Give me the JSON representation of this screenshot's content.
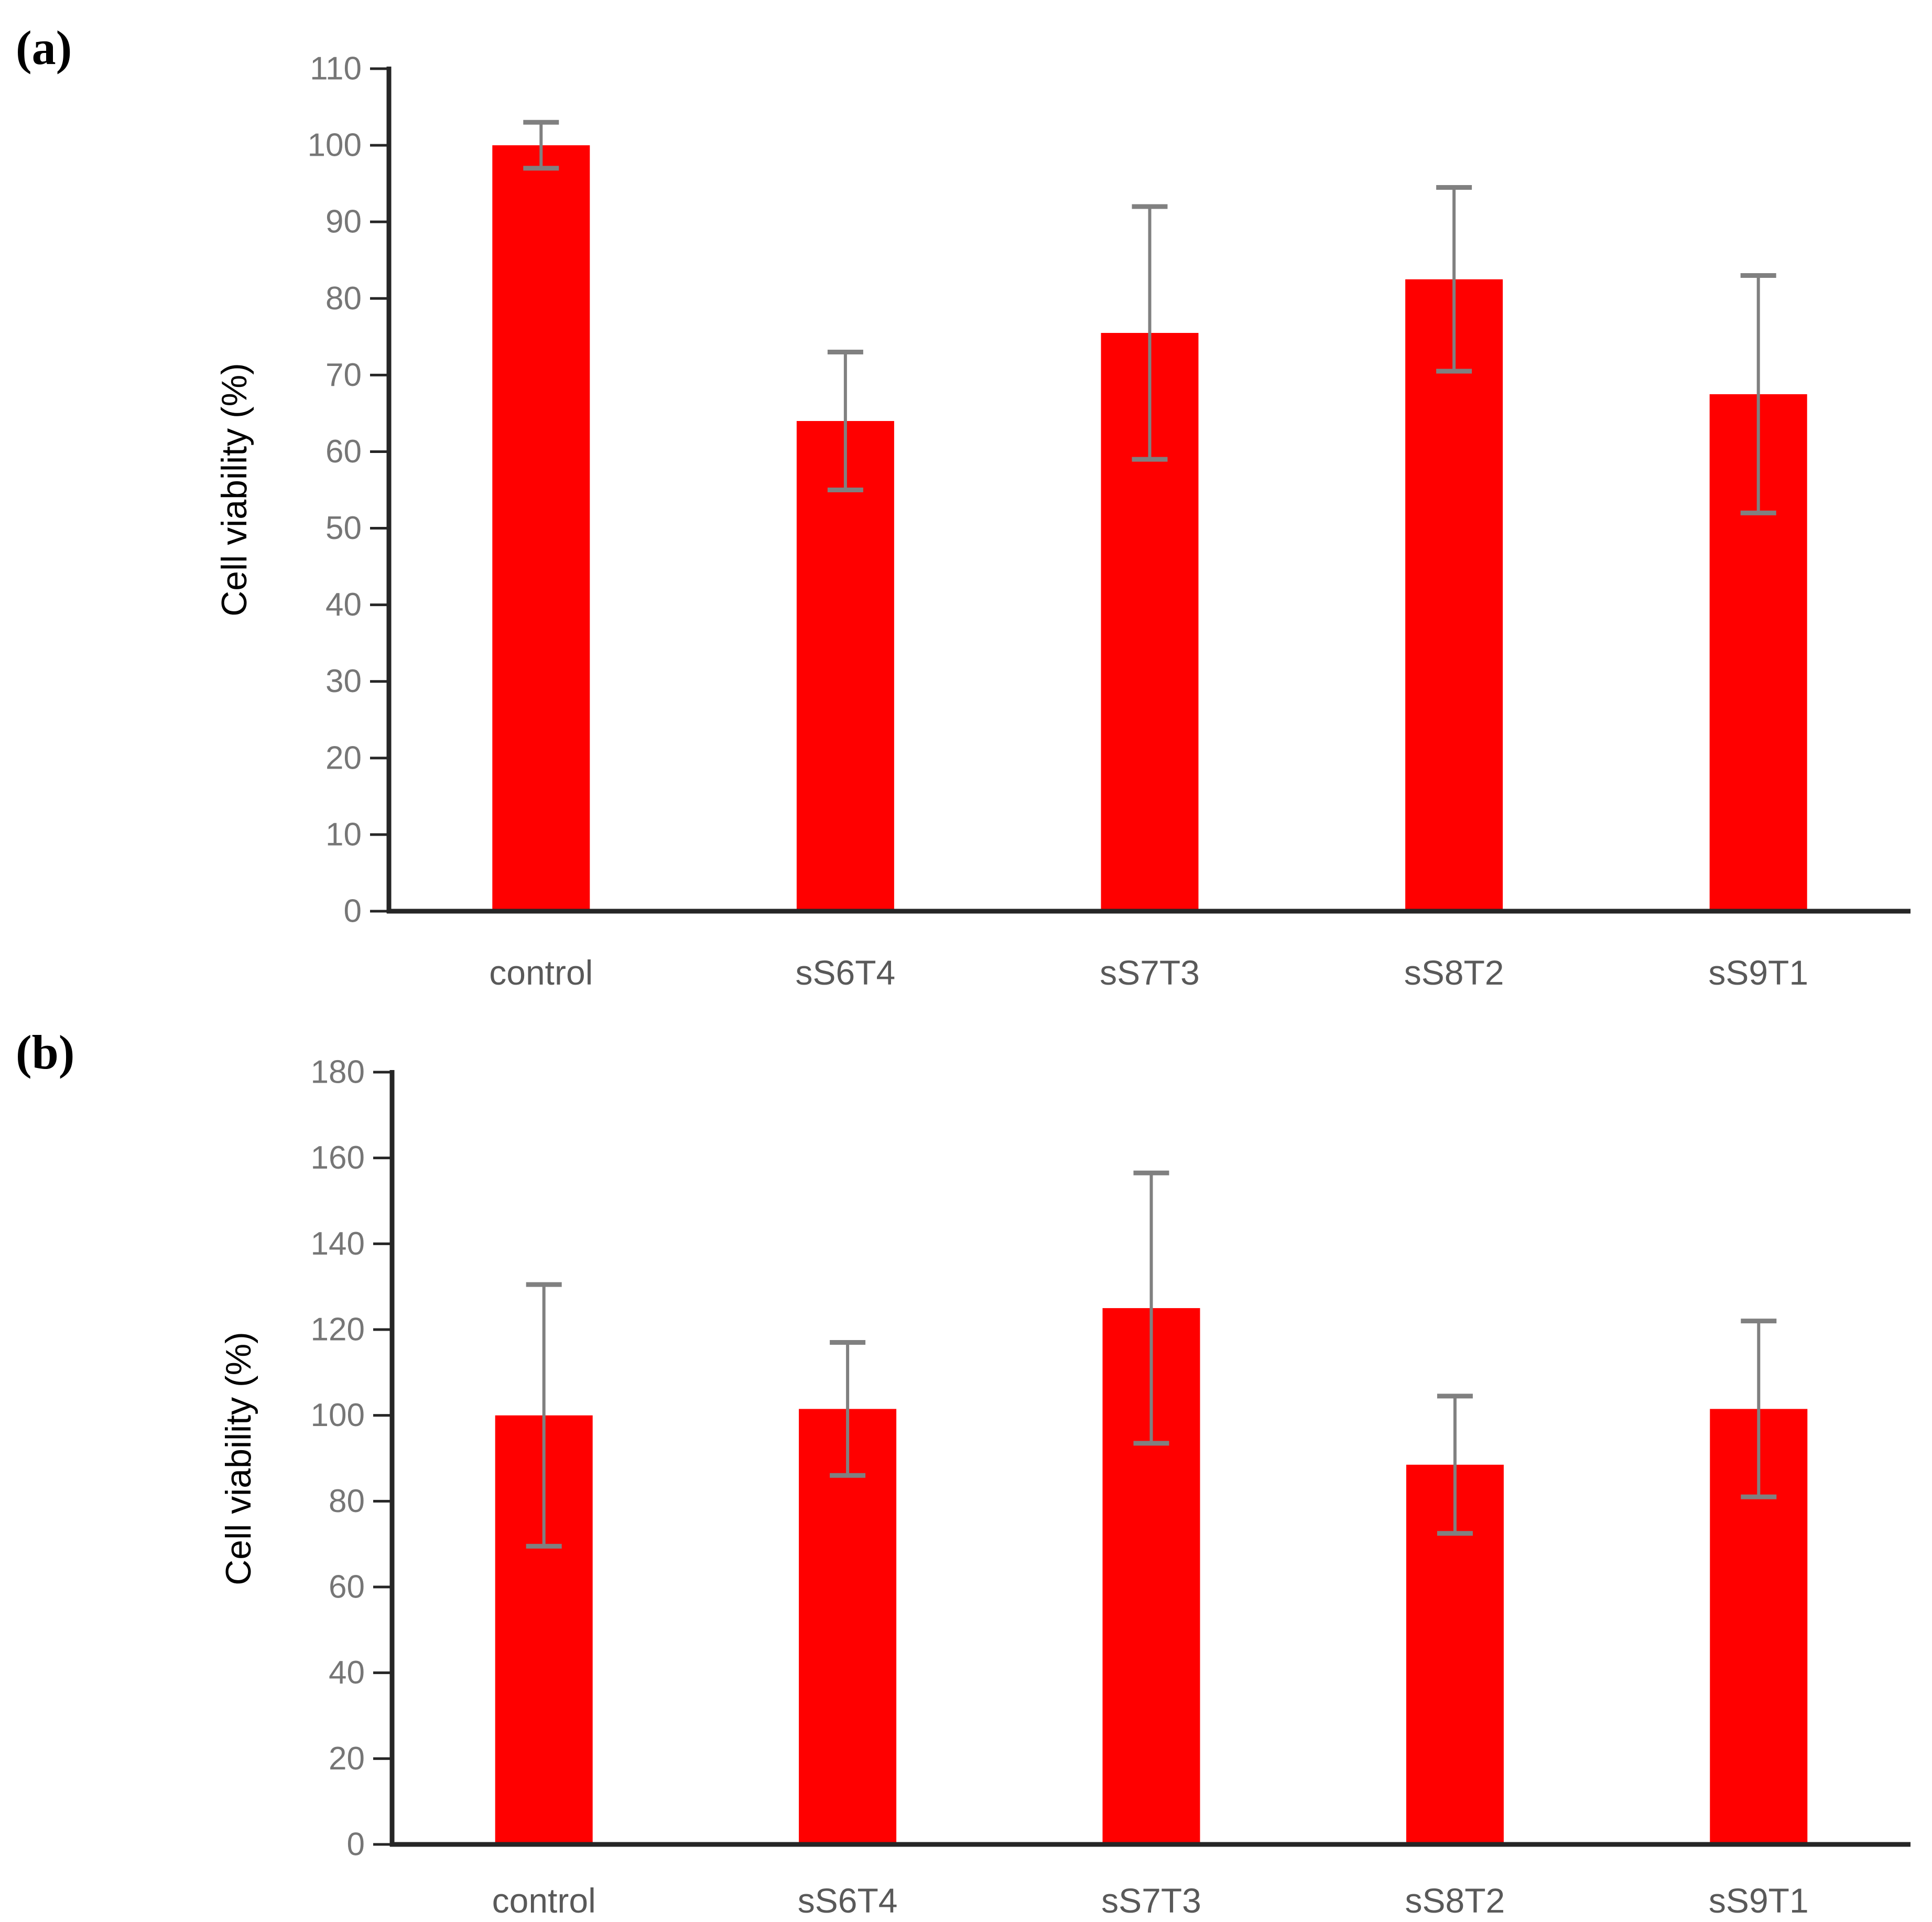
{
  "figure": {
    "panel_a_label": "(a)",
    "panel_b_label": "(b)",
    "y_axis_title": "Cell viability (%)",
    "colors": {
      "bar": "#ff0000",
      "error_bar": "#808080",
      "axis_line": "#262626",
      "tick_label": "#767676",
      "category_label": "#595959",
      "axis_title": "#0d0d0d",
      "panel_label": "#000000",
      "background": "#ffffff"
    }
  },
  "chart_data": [
    {
      "id": "a",
      "type": "bar",
      "panel_label": "(a)",
      "title": "",
      "xlabel": "",
      "ylabel": "Cell viability (%)",
      "categories": [
        "control",
        "sS6T4",
        "sS7T3",
        "sS8T2",
        "sS9T1"
      ],
      "values": [
        100,
        64,
        75.5,
        82.5,
        67.5
      ],
      "errors": [
        3,
        9,
        16.5,
        12,
        15.5
      ],
      "ylim": [
        0,
        110
      ],
      "ytick_step": 10,
      "ytick_labels": [
        "0",
        "10",
        "20",
        "30",
        "40",
        "50",
        "60",
        "70",
        "80",
        "90",
        "100",
        "110"
      ],
      "grid": false,
      "legend": null,
      "bar_color": "#ff0000"
    },
    {
      "id": "b",
      "type": "bar",
      "panel_label": "(b)",
      "title": "",
      "xlabel": "",
      "ylabel": "Cell viability (%)",
      "categories": [
        "control",
        "sS6T4",
        "sS7T3",
        "sS8T2",
        "sS9T1"
      ],
      "values": [
        100,
        101.5,
        125,
        88.5,
        101.5
      ],
      "errors": [
        30.5,
        15.5,
        31.5,
        16,
        20.5
      ],
      "ylim": [
        0,
        180
      ],
      "ytick_step": 20,
      "ytick_labels": [
        "0",
        "20",
        "40",
        "60",
        "80",
        "100",
        "120",
        "140",
        "160",
        "180"
      ],
      "grid": false,
      "legend": null,
      "bar_color": "#ff0000"
    }
  ]
}
